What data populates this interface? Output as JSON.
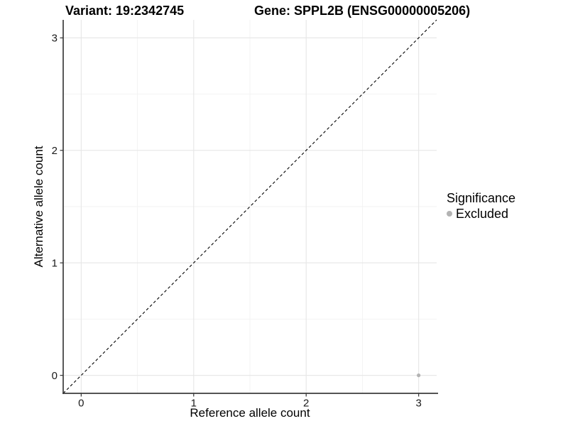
{
  "header": {
    "variant_title": "Variant: 19:2342745",
    "gene_title": "Gene: SPPL2B (ENSG00000005206)"
  },
  "chart_data": {
    "type": "scatter",
    "xlabel": "Reference allele count",
    "ylabel": "Alternative allele count",
    "xlim": [
      -0.16,
      3.16
    ],
    "ylim": [
      -0.16,
      3.16
    ],
    "x_ticks": [
      0,
      1,
      2,
      3
    ],
    "y_ticks": [
      0,
      1,
      2,
      3
    ],
    "x_minor": [
      0.5,
      1.5,
      2.5
    ],
    "y_minor": [
      0.5,
      1.5,
      2.5
    ],
    "grid": true,
    "identity_line": {
      "slope": 1,
      "intercept": 0,
      "style": "dashed",
      "color": "#000000"
    },
    "points": [
      {
        "x": 3,
        "y": 0,
        "series": "Excluded",
        "color": "#b3b3b3",
        "radius": 2.6
      }
    ],
    "legend": {
      "title": "Significance",
      "position": "right",
      "entries": [
        {
          "label": "Excluded",
          "color": "#b3b3b3"
        }
      ]
    },
    "colors": {
      "grid_major": "#e6e6e6",
      "grid_minor": "#f2f2f2",
      "axis_line": "#3c3c3c",
      "tick_mark": "#333333",
      "tick_label": "#1a1a1a"
    }
  }
}
